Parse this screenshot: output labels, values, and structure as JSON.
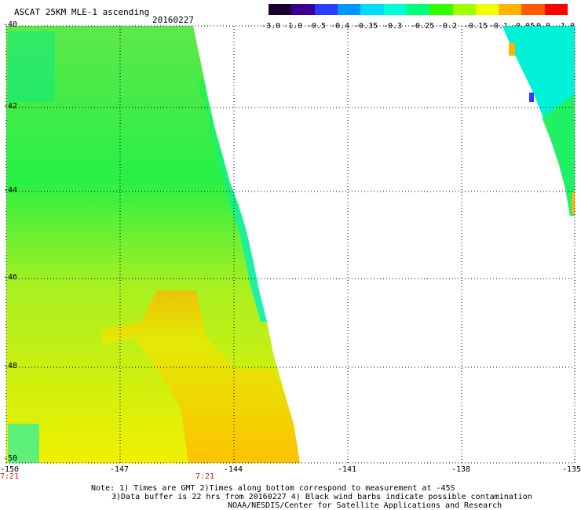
{
  "header": {
    "title": "ASCAT 25KM MLE-1 ascending",
    "date": "20160227"
  },
  "colorbar": {
    "labels": [
      "-3.0",
      "-1.0",
      "-0.5",
      "-0.4",
      "-0.35",
      "-0.3",
      "-0.25",
      "-0.2",
      "-0.15",
      "-0.1",
      "-0.05",
      "0.0",
      "1.0"
    ],
    "colors": [
      "#1a0030",
      "#3c0090",
      "#2a3cff",
      "#0096ff",
      "#00dcff",
      "#00ffd2",
      "#00ff78",
      "#32ff00",
      "#a0ff00",
      "#f0ff00",
      "#ffb400",
      "#ff5a00",
      "#ff0000"
    ]
  },
  "map": {
    "lon_range": [
      -150,
      -135
    ],
    "lat_range": [
      -50,
      -40
    ],
    "lon_ticks": [
      "-150",
      "-147",
      "-144",
      "-141",
      "-138",
      "-135"
    ],
    "lat_ticks": [
      "-40",
      "-42",
      "-44",
      "-46",
      "-48",
      "-50"
    ]
  },
  "time_labels": [
    "7:21",
    "7:21"
  ],
  "notes": {
    "line1": "Note: 1) Times are GMT 2)Times along bottom correspond to measurement at -45S",
    "line2": "3)Data buffer is 22 hrs from 20160227 4) Black wind barbs indicate possible contamination",
    "line3": "NOAA/NESDIS/Center for Satellite Applications and Research"
  },
  "swath_colors": {
    "cyan": "#00f0d8",
    "green": "#28f046",
    "yellow": "#f0f000",
    "orange": "#ffb400"
  }
}
